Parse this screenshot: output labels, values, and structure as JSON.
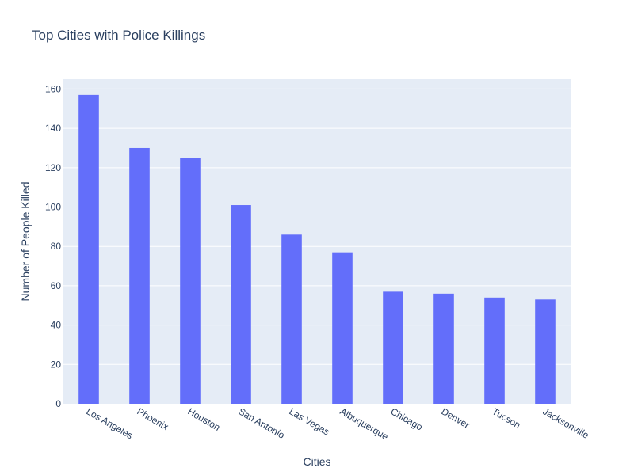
{
  "chart_data": {
    "type": "bar",
    "title": "Top Cities with Police Killings",
    "xlabel": "Cities",
    "ylabel": "Number of People Killed",
    "categories": [
      "Los Angeles",
      "Phoenix",
      "Houston",
      "San Antonio",
      "Las Vegas",
      "Albuquerque",
      "Chicago",
      "Denver",
      "Tucson",
      "Jacksonville"
    ],
    "values": [
      157,
      130,
      125,
      101,
      86,
      77,
      57,
      56,
      54,
      53
    ],
    "ylim": [
      0,
      165
    ],
    "yticks": [
      0,
      20,
      40,
      60,
      80,
      100,
      120,
      140,
      160
    ],
    "grid": true,
    "legend": "none",
    "colors": {
      "bar": "#636efa",
      "plot_background": "#e5ecf6",
      "gridline": "#ffffff",
      "text": "#2a3f5f"
    }
  }
}
